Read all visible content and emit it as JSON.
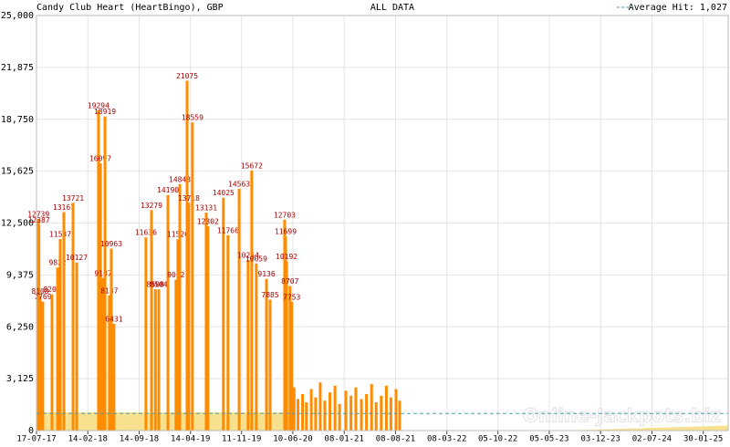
{
  "chart_data": {
    "type": "spike",
    "title": "Candy Club Heart (HeartBingo), GBP",
    "subtitle": "ALL DATA",
    "average_label": "Average Hit: 1,027",
    "average": 1027,
    "average_color": "#4a9fb5",
    "watermark": "Online-Jackpots.biz",
    "xlim": [
      "17-07-17",
      "13-05-25"
    ],
    "xticks": [
      "17-07-17",
      "14-02-18",
      "14-09-18",
      "14-04-19",
      "11-11-19",
      "10-06-20",
      "08-01-21",
      "08-08-21",
      "08-03-22",
      "05-10-22",
      "05-05-23",
      "03-12-23",
      "02-07-24",
      "30-01-25"
    ],
    "ylim": [
      0,
      25000
    ],
    "yticks": [
      0,
      {
        "value": 3125,
        "label": "3,125"
      },
      {
        "value": 6250,
        "label": "6,250"
      },
      {
        "value": 9375,
        "label": "9,375"
      },
      {
        "value": 12500,
        "label": "12,500"
      },
      {
        "value": 15625,
        "label": "15,625"
      },
      {
        "value": 18750,
        "label": "18,750"
      },
      {
        "value": 21875,
        "label": "21,875"
      },
      {
        "value": 25000,
        "label": "25,000"
      }
    ],
    "grid": true,
    "label_color": "#aa0000",
    "area": {
      "color": "#f7e08e",
      "x": [
        "17-07-17",
        "10-06-20",
        "11-06-20",
        "20-06-23",
        "13-05-25"
      ],
      "values": [
        1100,
        1100,
        0,
        0,
        300
      ]
    },
    "series": [
      {
        "color": "#ff8c00",
        "labels": true,
        "x": [
          "25-07-17",
          "27-07-17",
          "01-08-17",
          "12-08-17",
          "19-09-17",
          "12-10-17",
          "23-10-17",
          "07-11-17",
          "15-12-17",
          "30-12-17",
          "30-03-18",
          "07-04-18",
          "18-04-18",
          "26-04-18",
          "14-05-18",
          "22-05-18",
          "02-06-18",
          "12-10-18",
          "04-11-18",
          "20-11-18",
          "04-12-18",
          "11-01-19",
          "13-02-19",
          "21-02-19",
          "01-03-19",
          "31-03-19",
          "07-04-19",
          "22-04-19",
          "18-06-19",
          "25-06-19",
          "28-08-19",
          "16-09-19",
          "01-11-19",
          "08-12-19",
          "23-12-19",
          "11-01-20",
          "22-02-20",
          "08-03-20",
          "07-05-20",
          "11-05-20",
          "15-05-20",
          "29-05-20",
          "05-06-20"
        ],
        "values": [
          12739,
          12387,
          8108,
          7769,
          8208,
          9822,
          11537,
          13161,
          13721,
          10127,
          19294,
          16097,
          9187,
          18919,
          8137,
          10963,
          6431,
          11636,
          13279,
          8508,
          8504,
          14190,
          9082,
          11526,
          14843,
          21075,
          13718,
          18559,
          13131,
          12302,
          14025,
          11766,
          14563,
          10264,
          15672,
          10059,
          9136,
          7885,
          12703,
          11699,
          10192,
          8707,
          7753
        ]
      },
      {
        "color": "#ff8c00",
        "labels": false,
        "x": [
          "15-06-20",
          "01-07-20",
          "20-07-20",
          "05-08-20",
          "25-08-20",
          "12-09-20",
          "01-10-20",
          "20-10-20",
          "10-11-20",
          "01-12-20",
          "20-12-20",
          "15-01-21",
          "05-02-21",
          "25-02-21",
          "20-03-21",
          "10-04-21",
          "01-05-21",
          "20-05-21",
          "10-06-21",
          "01-07-21",
          "20-07-21",
          "10-08-21",
          "25-08-21"
        ],
        "values": [
          2600,
          1900,
          2200,
          1700,
          2500,
          2000,
          2900,
          1800,
          2300,
          2700,
          1600,
          2400,
          2100,
          2600,
          1900,
          2200,
          2800,
          1700,
          2100,
          2700,
          2000,
          2500,
          1800
        ]
      }
    ]
  }
}
